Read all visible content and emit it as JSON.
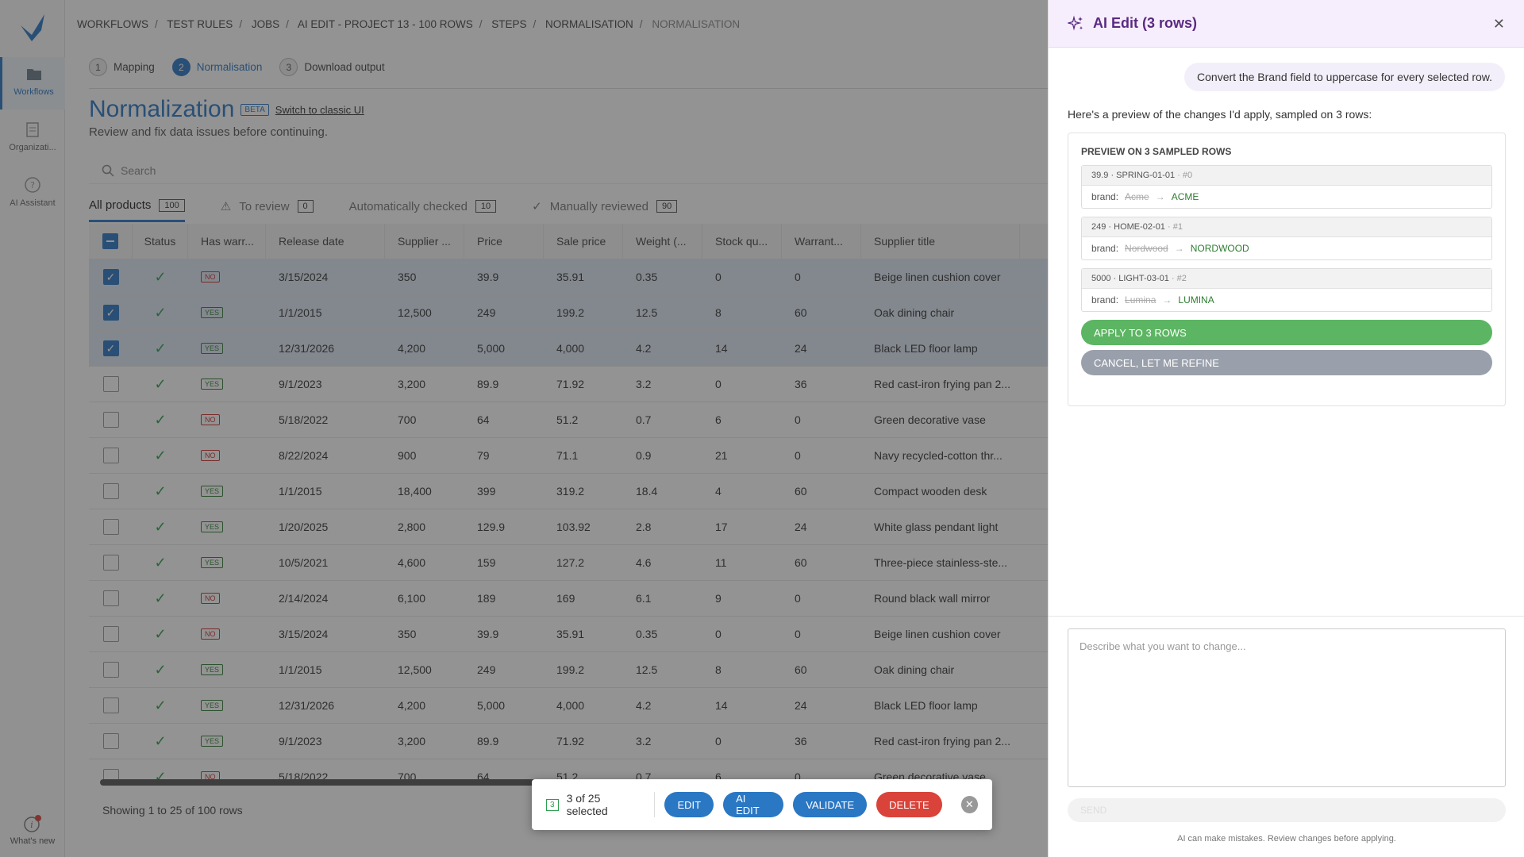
{
  "nav": {
    "items": [
      {
        "label": "Workflows",
        "icon": "folder-icon"
      },
      {
        "label": "Organizati...",
        "icon": "clipboard-icon"
      },
      {
        "label": "AI Assistant",
        "icon": "help-icon"
      }
    ],
    "whats_new": "What's new"
  },
  "breadcrumb": [
    "WORKFLOWS",
    "TEST RULES",
    "JOBS",
    "AI EDIT - PROJECT 13 - 100 ROWS",
    "STEPS",
    "NORMALISATION",
    "NORMALISATION"
  ],
  "steps": [
    {
      "num": "1",
      "label": "Mapping"
    },
    {
      "num": "2",
      "label": "Normalisation"
    },
    {
      "num": "3",
      "label": "Download output"
    }
  ],
  "page": {
    "title": "Normalization",
    "beta": "BETA",
    "classic_link": "Switch to classic UI",
    "subtitle": "Review and fix data issues before continuing.",
    "search_placeholder": "Search"
  },
  "tabs": [
    {
      "label": "All products",
      "count": "100"
    },
    {
      "label": "To review",
      "count": "0"
    },
    {
      "label": "Automatically checked",
      "count": "10"
    },
    {
      "label": "Manually reviewed",
      "count": "90"
    }
  ],
  "table": {
    "columns": [
      "Status",
      "Has warr...",
      "Release date",
      "Supplier ...",
      "Price",
      "Sale price",
      "Weight (...",
      "Stock qu...",
      "Warrant...",
      "Supplier title"
    ],
    "rows": [
      {
        "sel": true,
        "warr": "NO",
        "date": "3/15/2024",
        "supplier": "350",
        "price": "39.9",
        "sale": "35.91",
        "weight": "0.35",
        "stock": "0",
        "warranty": "0",
        "title": "Beige linen cushion cover"
      },
      {
        "sel": true,
        "warr": "YES",
        "date": "1/1/2015",
        "supplier": "12,500",
        "price": "249",
        "sale": "199.2",
        "weight": "12.5",
        "stock": "8",
        "warranty": "60",
        "title": "Oak dining chair"
      },
      {
        "sel": true,
        "warr": "YES",
        "date": "12/31/2026",
        "supplier": "4,200",
        "price": "5,000",
        "sale": "4,000",
        "weight": "4.2",
        "stock": "14",
        "warranty": "24",
        "title": "Black LED floor lamp"
      },
      {
        "sel": false,
        "warr": "YES",
        "date": "9/1/2023",
        "supplier": "3,200",
        "price": "89.9",
        "sale": "71.92",
        "weight": "3.2",
        "stock": "0",
        "warranty": "36",
        "title": "Red cast-iron frying pan 2..."
      },
      {
        "sel": false,
        "warr": "NO",
        "date": "5/18/2022",
        "supplier": "700",
        "price": "64",
        "sale": "51.2",
        "weight": "0.7",
        "stock": "6",
        "warranty": "0",
        "title": "Green decorative vase"
      },
      {
        "sel": false,
        "warr": "NO",
        "date": "8/22/2024",
        "supplier": "900",
        "price": "79",
        "sale": "71.1",
        "weight": "0.9",
        "stock": "21",
        "warranty": "0",
        "title": "Navy recycled-cotton thr..."
      },
      {
        "sel": false,
        "warr": "YES",
        "date": "1/1/2015",
        "supplier": "18,400",
        "price": "399",
        "sale": "319.2",
        "weight": "18.4",
        "stock": "4",
        "warranty": "60",
        "title": "Compact wooden desk"
      },
      {
        "sel": false,
        "warr": "YES",
        "date": "1/20/2025",
        "supplier": "2,800",
        "price": "129.9",
        "sale": "103.92",
        "weight": "2.8",
        "stock": "17",
        "warranty": "24",
        "title": "White glass pendant light"
      },
      {
        "sel": false,
        "warr": "YES",
        "date": "10/5/2021",
        "supplier": "4,600",
        "price": "159",
        "sale": "127.2",
        "weight": "4.6",
        "stock": "11",
        "warranty": "60",
        "title": "Three-piece stainless-ste..."
      },
      {
        "sel": false,
        "warr": "NO",
        "date": "2/14/2024",
        "supplier": "6,100",
        "price": "189",
        "sale": "169",
        "weight": "6.1",
        "stock": "9",
        "warranty": "0",
        "title": "Round black wall mirror"
      },
      {
        "sel": false,
        "warr": "NO",
        "date": "3/15/2024",
        "supplier": "350",
        "price": "39.9",
        "sale": "35.91",
        "weight": "0.35",
        "stock": "0",
        "warranty": "0",
        "title": "Beige linen cushion cover"
      },
      {
        "sel": false,
        "warr": "YES",
        "date": "1/1/2015",
        "supplier": "12,500",
        "price": "249",
        "sale": "199.2",
        "weight": "12.5",
        "stock": "8",
        "warranty": "60",
        "title": "Oak dining chair"
      },
      {
        "sel": false,
        "warr": "YES",
        "date": "12/31/2026",
        "supplier": "4,200",
        "price": "5,000",
        "sale": "4,000",
        "weight": "4.2",
        "stock": "14",
        "warranty": "24",
        "title": "Black LED floor lamp"
      },
      {
        "sel": false,
        "warr": "YES",
        "date": "9/1/2023",
        "supplier": "3,200",
        "price": "89.9",
        "sale": "71.92",
        "weight": "3.2",
        "stock": "0",
        "warranty": "36",
        "title": "Red cast-iron frying pan 2..."
      },
      {
        "sel": false,
        "warr": "NO",
        "date": "5/18/2022",
        "supplier": "700",
        "price": "64",
        "sale": "51.2",
        "weight": "0.7",
        "stock": "6",
        "warranty": "0",
        "title": "Green decorative vase"
      }
    ]
  },
  "footer": "Showing 1 to 25 of 100 rows",
  "action_bar": {
    "badge": "3",
    "selected": "3 of 25 selected",
    "edit": "EDIT",
    "ai_edit": "AI EDIT",
    "validate": "VALIDATE",
    "delete": "DELETE"
  },
  "panel": {
    "title": "AI Edit (3 rows)",
    "user_message": "Convert the Brand field to uppercase for every selected row.",
    "ai_message": "Here's a preview of the changes I'd apply, sampled on 3 rows:",
    "preview_title": "PREVIEW ON 3 SAMPLED ROWS",
    "samples": [
      {
        "head": "39.9 · SPRING-01-01",
        "idx": " · #0",
        "field": "brand:",
        "old": "Acme",
        "new": "ACME"
      },
      {
        "head": "249 · HOME-02-01",
        "idx": " · #1",
        "field": "brand:",
        "old": "Nordwood",
        "new": "NORDWOOD"
      },
      {
        "head": "5000 · LIGHT-03-01",
        "idx": " · #2",
        "field": "brand:",
        "old": "Lumina",
        "new": "LUMINA"
      }
    ],
    "apply": "APPLY TO 3 ROWS",
    "cancel": "CANCEL, LET ME REFINE",
    "prompt_placeholder": "Describe what you want to change...",
    "send": "SEND",
    "disclaimer": "AI can make mistakes. Review changes before applying."
  },
  "colors": {
    "accent": "#2a77c4",
    "ai_purple": "#5a2a82",
    "success": "#5cb562",
    "danger": "#d9433a"
  }
}
